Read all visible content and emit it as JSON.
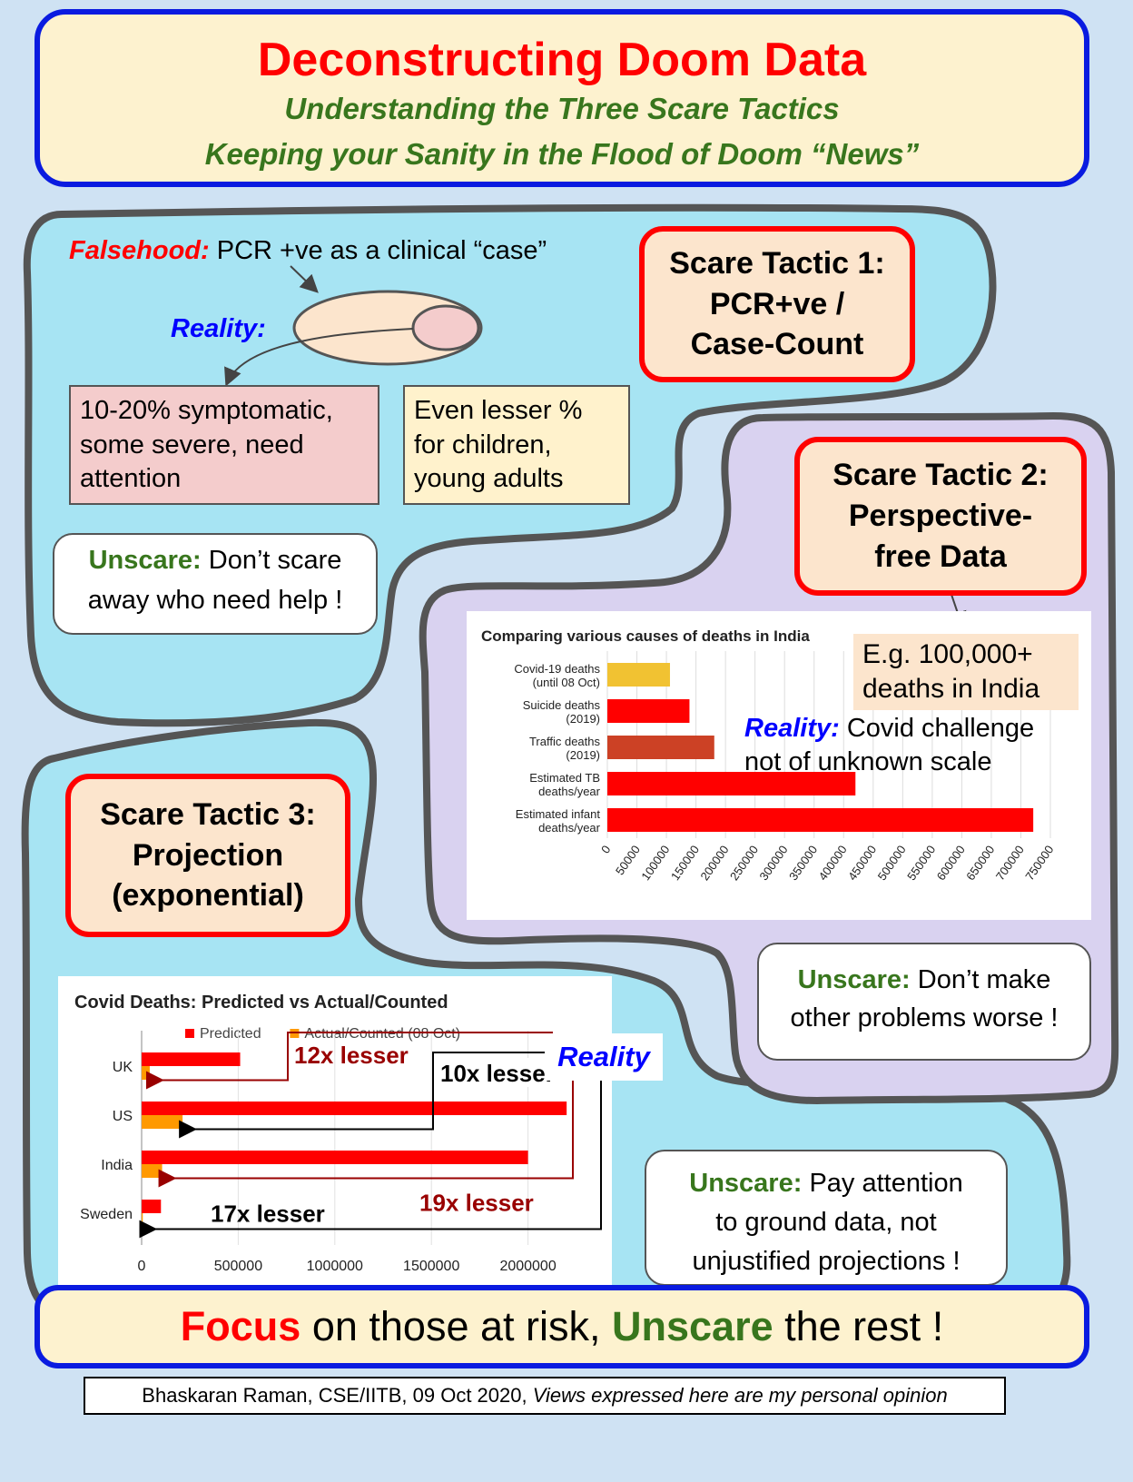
{
  "header": {
    "title": "Deconstructing Doom Data",
    "subtitle1": "Understanding the Three Scare Tactics",
    "subtitle2": "Keeping your Sanity in the Flood of Doom “News”"
  },
  "tactic1": {
    "title_line1": "Scare Tactic 1:",
    "title_line2": "PCR+ve /",
    "title_line3": "Case-Count",
    "falsehood_label": "Falsehood:",
    "falsehood_text": "PCR +ve as a clinical “case”",
    "reality_label": "Reality:",
    "symptomatic_box": [
      "10-20% symptomatic,",
      "some severe, need",
      "attention"
    ],
    "children_box": [
      "Even lesser %",
      "for children,",
      "young adults"
    ],
    "unscare_label": "Unscare:",
    "unscare_text_1": "Don’t scare",
    "unscare_text_2": "away who need help !"
  },
  "tactic2": {
    "title_line1": "Scare Tactic 2:",
    "title_line2": "Perspective-",
    "title_line3": "free Data",
    "example_line1": "E.g. 100,000+",
    "example_line2": "deaths in India",
    "reality_label": "Reality:",
    "reality_text_1": "Covid challenge",
    "reality_text_2": "not of unknown scale",
    "unscare_label": "Unscare:",
    "unscare_text_1": "Don’t make",
    "unscare_text_2": "other problems worse !"
  },
  "tactic3": {
    "title_line1": "Scare Tactic 3:",
    "title_line2": "Projection",
    "title_line3": "(exponential)",
    "reality_label": "Reality",
    "unscare_label": "Unscare:",
    "unscare_text_1": "Pay attention",
    "unscare_text_2": "to ground data, not",
    "unscare_text_3": "unjustified projections !"
  },
  "footer": {
    "focus_word": "Focus",
    "focus_mid": " on those at risk, ",
    "unscare_word": "Unscare",
    "focus_end": " the rest !",
    "credit_main": "Bhaskaran Raman, CSE/IITB, 09 Oct 2020, ",
    "credit_italic": "Views expressed here are my personal opinion"
  },
  "chart_data": [
    {
      "type": "bar",
      "orientation": "horizontal",
      "title": "Comparing various causes of deaths in India",
      "categories": [
        [
          "Covid-19 deaths",
          "(until 08 Oct)"
        ],
        [
          "Suicide deaths",
          "(2019)"
        ],
        [
          "Traffic deaths",
          "(2019)"
        ],
        [
          "Estimated TB",
          "deaths/year"
        ],
        [
          "Estimated infant",
          "deaths/year"
        ]
      ],
      "values": [
        106000,
        139000,
        181000,
        420000,
        721000
      ],
      "bar_colors": [
        "#f1c232",
        "#ff0000",
        "#cc4125",
        "#ff0000",
        "#ff0000"
      ],
      "xlim": [
        0,
        750000
      ],
      "xticks": [
        0,
        50000,
        100000,
        150000,
        200000,
        250000,
        300000,
        350000,
        400000,
        450000,
        500000,
        550000,
        600000,
        650000,
        700000,
        750000
      ],
      "grid": true
    },
    {
      "type": "bar",
      "orientation": "horizontal",
      "title": "Covid Deaths: Predicted vs Actual/Counted",
      "categories": [
        "UK",
        "US",
        "India",
        "Sweden"
      ],
      "series": [
        {
          "name": "Predicted",
          "color": "#ff0000",
          "values": [
            510000,
            2200000,
            2000000,
            100000
          ]
        },
        {
          "name": "Actual/Counted (08 Oct)",
          "color": "#ff9900",
          "values": [
            42000,
            212000,
            106000,
            5900
          ]
        }
      ],
      "xlim": [
        0,
        2500000
      ],
      "xticks": [
        0,
        500000,
        1000000,
        1500000,
        2000000
      ],
      "legend": "top",
      "grid": true,
      "annotations": [
        {
          "text": "12x lesser",
          "category": "UK",
          "color": "#990000"
        },
        {
          "text": "10x lesser",
          "category": "US",
          "color": "#000000"
        },
        {
          "text": "19x lesser",
          "category": "India",
          "color": "#990000"
        },
        {
          "text": "17x lesser",
          "category": "Sweden",
          "color": "#000000"
        }
      ]
    }
  ]
}
